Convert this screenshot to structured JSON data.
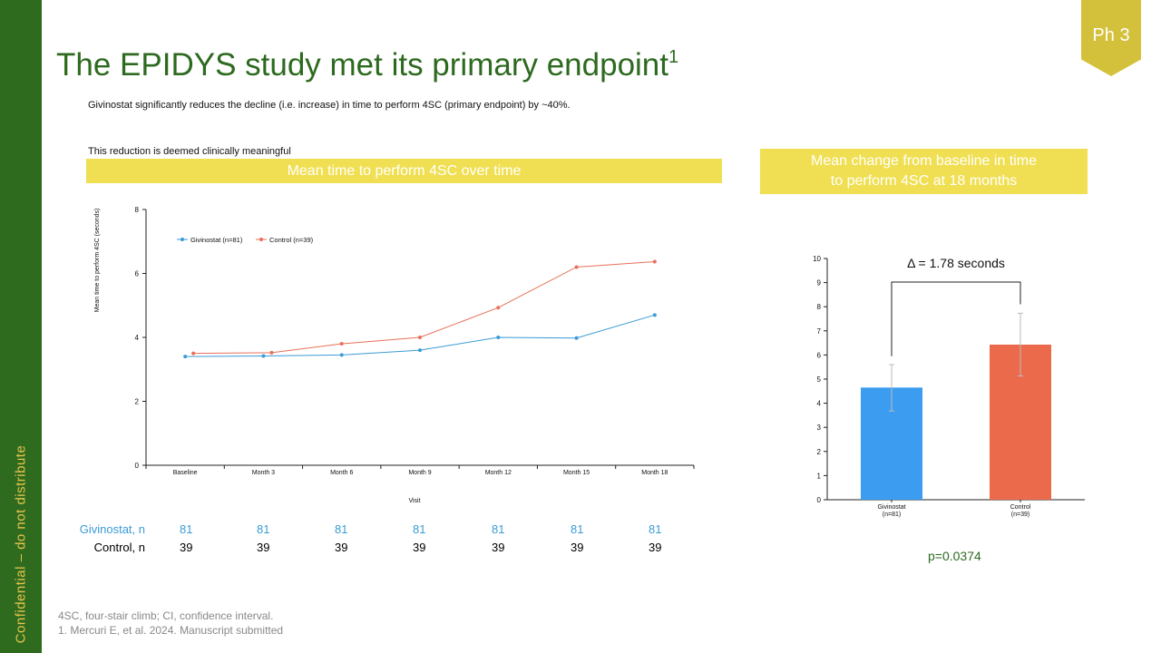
{
  "sidebar": {
    "text": "Confidential – do not distribute"
  },
  "badge": {
    "label": "Ph 3"
  },
  "title": {
    "main": "The EPIDYS study met its primary endpoint",
    "superscript": "1"
  },
  "subtitles": [
    "Givinostat significantly reduces the decline (i.e. increase) in time to perform 4SC (primary endpoint) by ~40%.",
    "This reduction is deemed clinically meaningful"
  ],
  "banners": {
    "left": "Mean time to perform 4SC over time",
    "right_line1": "Mean change from baseline in time",
    "right_line2": "to perform 4SC at 18 months"
  },
  "colors": {
    "givinostat": "#3a9bd5",
    "control": "#e8705a",
    "bar_givinostat": "#3b9cf0",
    "bar_control": "#ec6a4c"
  },
  "chart_data": [
    {
      "type": "line",
      "title": "",
      "xlabel": "Visit",
      "ylabel": "Mean time to perform 4SC (seconds)",
      "ylim": [
        0,
        8
      ],
      "yticks": [
        0,
        2,
        4,
        6,
        8
      ],
      "categories": [
        "Baseline",
        "Month 3",
        "Month 6",
        "Month 9",
        "Month 12",
        "Month 15",
        "Month 18"
      ],
      "legend_position": "top-left",
      "series": [
        {
          "name": "Givinostat (n=81)",
          "values": [
            3.4,
            3.42,
            3.45,
            3.6,
            4.0,
            3.98,
            4.7
          ]
        },
        {
          "name": "Control (n=39)",
          "values": [
            3.5,
            3.52,
            3.8,
            4.0,
            4.93,
            6.2,
            6.37
          ]
        }
      ]
    },
    {
      "type": "bar",
      "title": "",
      "ylim": [
        0,
        10
      ],
      "yticks": [
        0,
        1,
        2,
        3,
        4,
        5,
        6,
        7,
        8,
        9,
        10
      ],
      "categories": [
        "Givinostat",
        "Control"
      ],
      "category_sublabels": [
        "(n=81)",
        "(n=39)"
      ],
      "values": [
        4.65,
        6.43
      ],
      "error_high": [
        5.6,
        7.73
      ],
      "error_low": [
        3.68,
        5.13
      ],
      "annotation": "Δ = 1.78 seconds"
    }
  ],
  "n_table": {
    "givinostat_label": "Givinostat, n",
    "control_label": "Control, n",
    "givinostat_values": [
      "81",
      "81",
      "81",
      "81",
      "81",
      "81",
      "81"
    ],
    "control_values": [
      "39",
      "39",
      "39",
      "39",
      "39",
      "39",
      "39"
    ]
  },
  "pvalue": "p=0.0374",
  "footnotes": [
    "4SC, four-stair climb; CI, confidence interval.",
    "1. Mercuri E, et al. 2024. Manuscript submitted"
  ]
}
